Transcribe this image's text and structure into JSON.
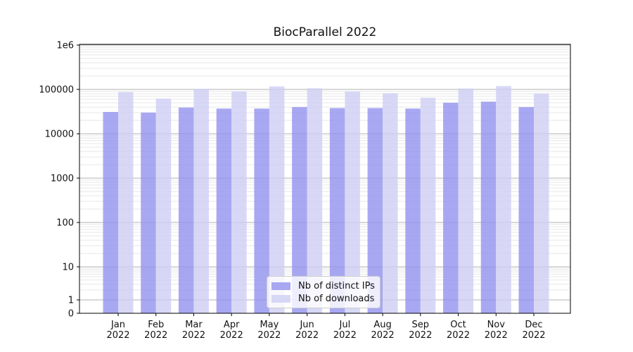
{
  "chart_data": {
    "type": "bar",
    "title": "BiocParallel 2022",
    "categories": [
      "Jan",
      "Feb",
      "Mar",
      "Apr",
      "May",
      "Jun",
      "Jul",
      "Aug",
      "Sep",
      "Oct",
      "Nov",
      "Dec"
    ],
    "category_year": "2022",
    "series": [
      {
        "name": "Nb of distinct IPs",
        "color": "#9292ef",
        "values": [
          31000,
          30000,
          39000,
          37000,
          37000,
          40000,
          38000,
          38000,
          37000,
          50000,
          53000,
          40000
        ]
      },
      {
        "name": "Nb of downloads",
        "color": "#cecef4",
        "values": [
          87000,
          62000,
          103000,
          90000,
          117000,
          106000,
          90000,
          82000,
          65000,
          105000,
          119000,
          81000
        ]
      }
    ],
    "xlabel": "",
    "ylabel": "",
    "y_axis": {
      "scale": "symlog",
      "ylim": [
        0,
        1000000
      ],
      "tick_values": [
        0,
        1,
        10,
        100,
        1000,
        10000,
        100000,
        1000000
      ],
      "tick_labels": [
        "0",
        "1",
        "10",
        "100",
        "1000",
        "10000",
        "100000",
        "1e6"
      ]
    },
    "grid": "on",
    "legend_position": "lower center"
  },
  "colors": {
    "background": "#ffffff",
    "axis": "#000000",
    "major_grid": "#b0b0b0",
    "minor_grid": "#e7e7e7",
    "tick_text": "#111111",
    "legend_border": "#cccccc",
    "bar_opacity": "0.8"
  }
}
